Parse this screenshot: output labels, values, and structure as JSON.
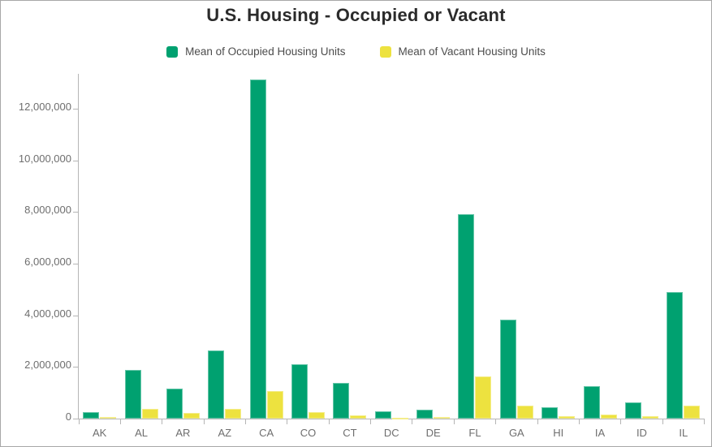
{
  "title": "U.S. Housing - Occupied or Vacant",
  "legend": {
    "items": [
      {
        "label": "Mean of Occupied Housing Units",
        "color": "#00a170"
      },
      {
        "label": "Mean of Vacant Housing Units",
        "color": "#ede23f"
      }
    ]
  },
  "chart_data": {
    "type": "bar",
    "title": "U.S. Housing - Occupied or Vacant",
    "categories": [
      "AK",
      "AL",
      "AR",
      "AZ",
      "CA",
      "CO",
      "CT",
      "DC",
      "DE",
      "FL",
      "GA",
      "HI",
      "IA",
      "ID",
      "IL"
    ],
    "series": [
      {
        "name": "Mean of Occupied Housing Units",
        "color": "#00a170",
        "values": [
          240000,
          1880000,
          1160000,
          2630000,
          13120000,
          2100000,
          1370000,
          275000,
          350000,
          7925000,
          3830000,
          450000,
          1270000,
          630000,
          4900000
        ]
      },
      {
        "name": "Mean of Vacant Housing Units",
        "color": "#ede23f",
        "values": [
          65000,
          380000,
          210000,
          385000,
          1070000,
          240000,
          130000,
          40000,
          70000,
          1620000,
          495000,
          90000,
          150000,
          95000,
          490000
        ]
      }
    ],
    "xlabel": "",
    "ylabel": "",
    "ylim": [
      0,
      13345000
    ],
    "y_ticks": [
      0,
      2000000,
      4000000,
      6000000,
      8000000,
      10000000,
      12000000
    ],
    "y_tick_labels": [
      "0",
      "2,000,000",
      "4,000,000",
      "6,000,000",
      "8,000,000",
      "10,000,000",
      "12,000,000"
    ],
    "grid": false,
    "legend_position": "top"
  }
}
